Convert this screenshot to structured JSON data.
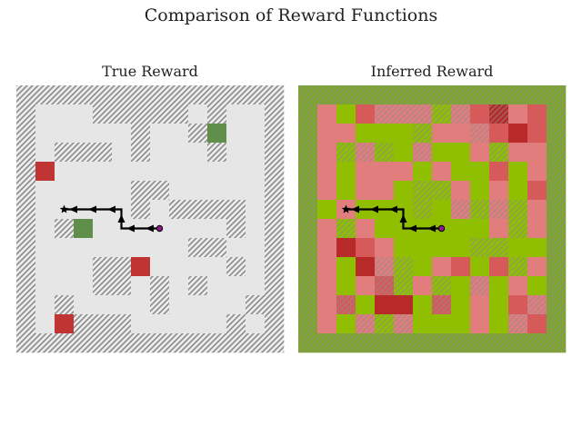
{
  "title": "Comparison of Reward Functions",
  "panels": [
    {
      "id": "true",
      "title": "True Reward"
    },
    {
      "id": "inferred",
      "title": "Inferred Reward"
    }
  ],
  "colors": {
    "wall_hatch": "#8a8a8a",
    "floor_true": "#e6e6e6",
    "positive_true": "#5f8f4a",
    "negative_true": "#c03434",
    "path": "#000000",
    "start_marker": "#8b1a8b",
    "goal_marker": "#000000"
  },
  "chart_data": {
    "type": "heatmap",
    "grid_size": [
      14,
      14
    ],
    "legend": "none",
    "walls": [
      "11111111111111",
      "10001111101001",
      "10000010010001",
      "10111010001001",
      "10000000000001",
      "10000011000001",
      "10000010111101",
      "10100000000101",
      "10000000011001",
      "10001100000101",
      "10001101010001",
      "10100001000011",
      "10011100000101",
      "11111111111111"
    ],
    "true_reward": {
      "positive_cells": [
        [
          3,
          7
        ],
        [
          10,
          2
        ]
      ],
      "negative_cells": [
        [
          1,
          4
        ],
        [
          6,
          9
        ],
        [
          2,
          12
        ]
      ],
      "values": {
        "positive": 1,
        "negative": -1,
        "neutral": 0
      }
    },
    "inferred_reward": {
      "value_range": [
        -1,
        1
      ],
      "values": [
        "gggggggggggggg",
        "g0+-000+0-x0-g",
        "g00++++000-x-g",
        "g0+0++0++0+00g",
        "g0+000+0++-+0g",
        "g0+00+++0+0+-g",
        "g+0+++++0+0+0g",
        "g0+0++++++0+0g",
        "g0x-0++++++++g",
        "g0+x0++0-+-+0g",
        "g0+0-+0++0+0+g",
        "g0-+xx+-+0+-0g",
        "g0+0+0+++0+0-g",
        "gggggggggggggg"
      ],
      "legend_codes": {
        "+": 0.9,
        "g": 0.55,
        "0": -0.45,
        "-": -0.7,
        "x": -0.9
      }
    },
    "trajectory": {
      "start": [
        7,
        7
      ],
      "goal": [
        2,
        6
      ],
      "path": [
        [
          7,
          7
        ],
        [
          6,
          7
        ],
        [
          5,
          7
        ],
        [
          5,
          6
        ],
        [
          4,
          6
        ],
        [
          3,
          6
        ],
        [
          2,
          6
        ]
      ]
    }
  }
}
